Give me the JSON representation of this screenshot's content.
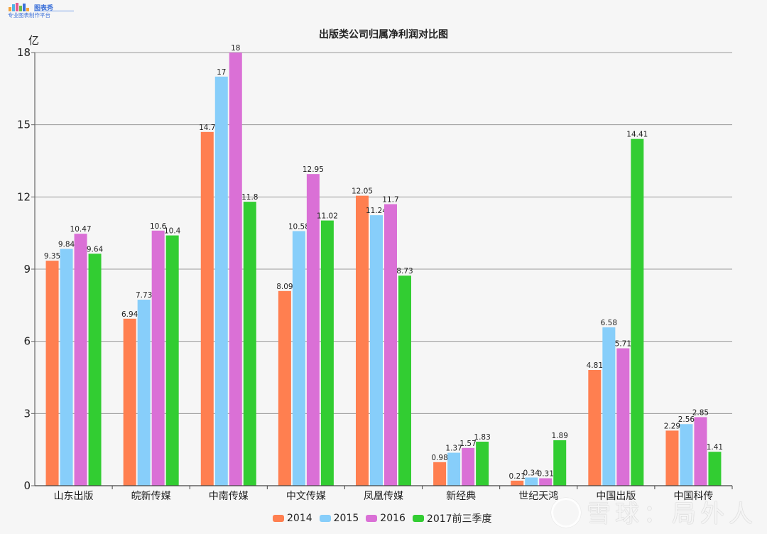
{
  "logo": {
    "brand": "图表秀",
    "slogan": "专业图表制作平台"
  },
  "header": {
    "title": "出版类公司归属净利润对比图",
    "unit": "亿"
  },
  "legend": {
    "items": [
      {
        "label": "2014",
        "color": "#ff7f50"
      },
      {
        "label": "2015",
        "color": "#87cefa"
      },
      {
        "label": "2016",
        "color": "#da70d6"
      },
      {
        "label": "2017前三季度",
        "color": "#32cd32"
      }
    ]
  },
  "watermark": {
    "text": "雪球：局外人"
  },
  "chart_data": {
    "type": "bar",
    "title": "出版类公司归属净利润对比图",
    "xlabel": "",
    "ylabel": "亿",
    "ylim": [
      0,
      18
    ],
    "yticks": [
      0,
      3,
      6,
      9,
      12,
      15,
      18
    ],
    "grid": true,
    "legend_position": "bottom",
    "categories": [
      "山东出版",
      "皖新传媒",
      "中南传媒",
      "中文传媒",
      "凤凰传媒",
      "新经典",
      "世纪天鸿",
      "中国出版",
      "中国科传"
    ],
    "series": [
      {
        "name": "2014",
        "color": "#ff7f50",
        "values": [
          9.35,
          6.94,
          14.7,
          8.09,
          12.05,
          0.98,
          0.21,
          4.81,
          2.29
        ]
      },
      {
        "name": "2015",
        "color": "#87cefa",
        "values": [
          9.84,
          7.73,
          17,
          10.58,
          11.24,
          1.37,
          0.34,
          6.58,
          2.56
        ]
      },
      {
        "name": "2016",
        "color": "#da70d6",
        "values": [
          10.47,
          10.6,
          18,
          12.95,
          11.7,
          1.57,
          0.31,
          5.71,
          2.85
        ]
      },
      {
        "name": "2017前三季度",
        "color": "#32cd32",
        "values": [
          9.64,
          10.4,
          11.8,
          11.02,
          8.73,
          1.83,
          1.89,
          14.41,
          1.41
        ]
      }
    ]
  }
}
